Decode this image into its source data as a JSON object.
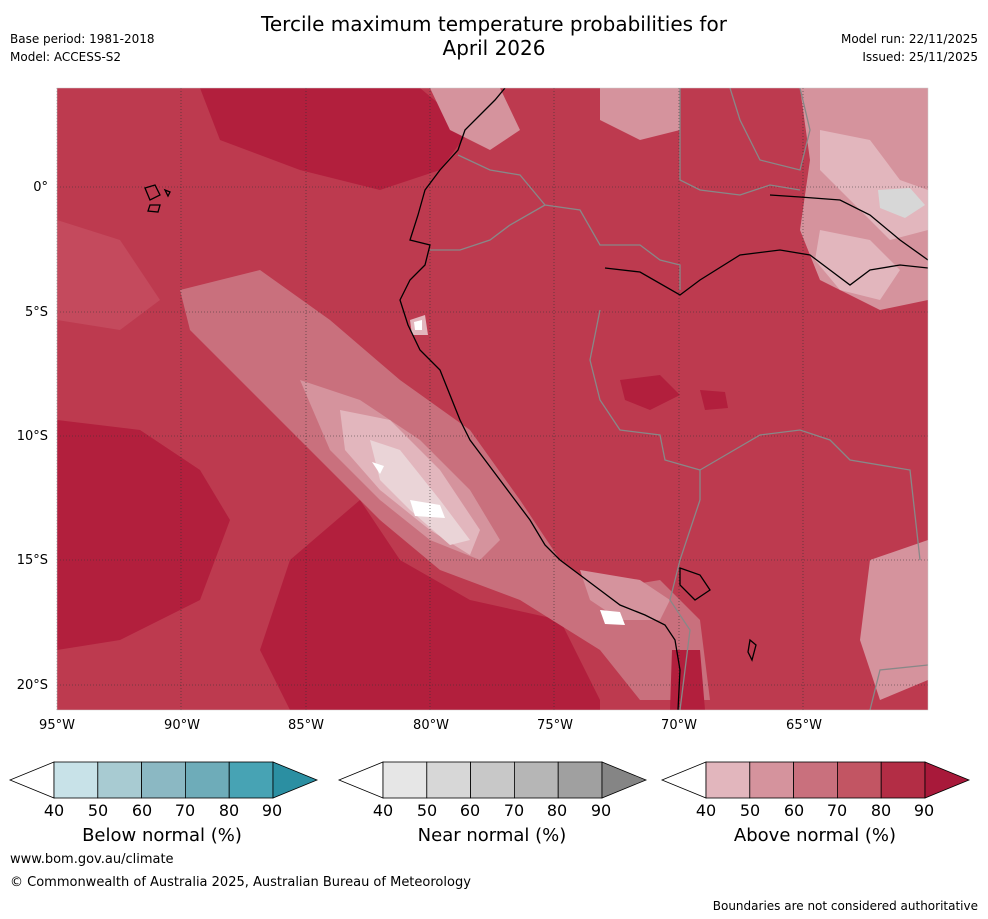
{
  "header": {
    "title_line1": "Tercile maximum temperature probabilities for",
    "title_line2": "April 2026",
    "base_period": "Base period: 1981-2018",
    "model": "Model: ACCESS-S2",
    "model_run": "Model run: 22/11/2025",
    "issued": "Issued: 25/11/2025"
  },
  "map": {
    "lat_labels": [
      "0°",
      "5°S",
      "10°S",
      "15°S",
      "20°S"
    ],
    "lon_labels": [
      "95°W",
      "90°W",
      "85°W",
      "80°W",
      "75°W",
      "70°W",
      "65°W"
    ]
  },
  "colorbars": [
    {
      "name": "below",
      "title": "Below normal (%)",
      "ticks": [
        "40",
        "50",
        "60",
        "70",
        "80",
        "90"
      ],
      "colors": [
        "#ffffff",
        "#c8e2e8",
        "#a8cbd2",
        "#8bb8c3",
        "#6eacb9",
        "#47a3b4",
        "#2b8fa2"
      ]
    },
    {
      "name": "near",
      "title": "Near normal (%)",
      "ticks": [
        "40",
        "50",
        "60",
        "70",
        "80",
        "90"
      ],
      "colors": [
        "#ffffff",
        "#e6e6e6",
        "#d7d7d7",
        "#c8c8c8",
        "#b6b6b6",
        "#a0a0a0",
        "#858585"
      ]
    },
    {
      "name": "above",
      "title": "Above normal (%)",
      "ticks": [
        "40",
        "50",
        "60",
        "70",
        "80",
        "90"
      ],
      "colors": [
        "#ffffff",
        "#e2b6bd",
        "#d5939d",
        "#c9707d",
        "#c25563",
        "#b32d45",
        "#a8193a"
      ]
    }
  ],
  "footer": {
    "url": "www.bom.gov.au/climate",
    "copyright": "© Commonwealth of Australia 2025, Australian Bureau of Meteorology",
    "disclaimer": "Boundaries are not considered authoritative"
  }
}
